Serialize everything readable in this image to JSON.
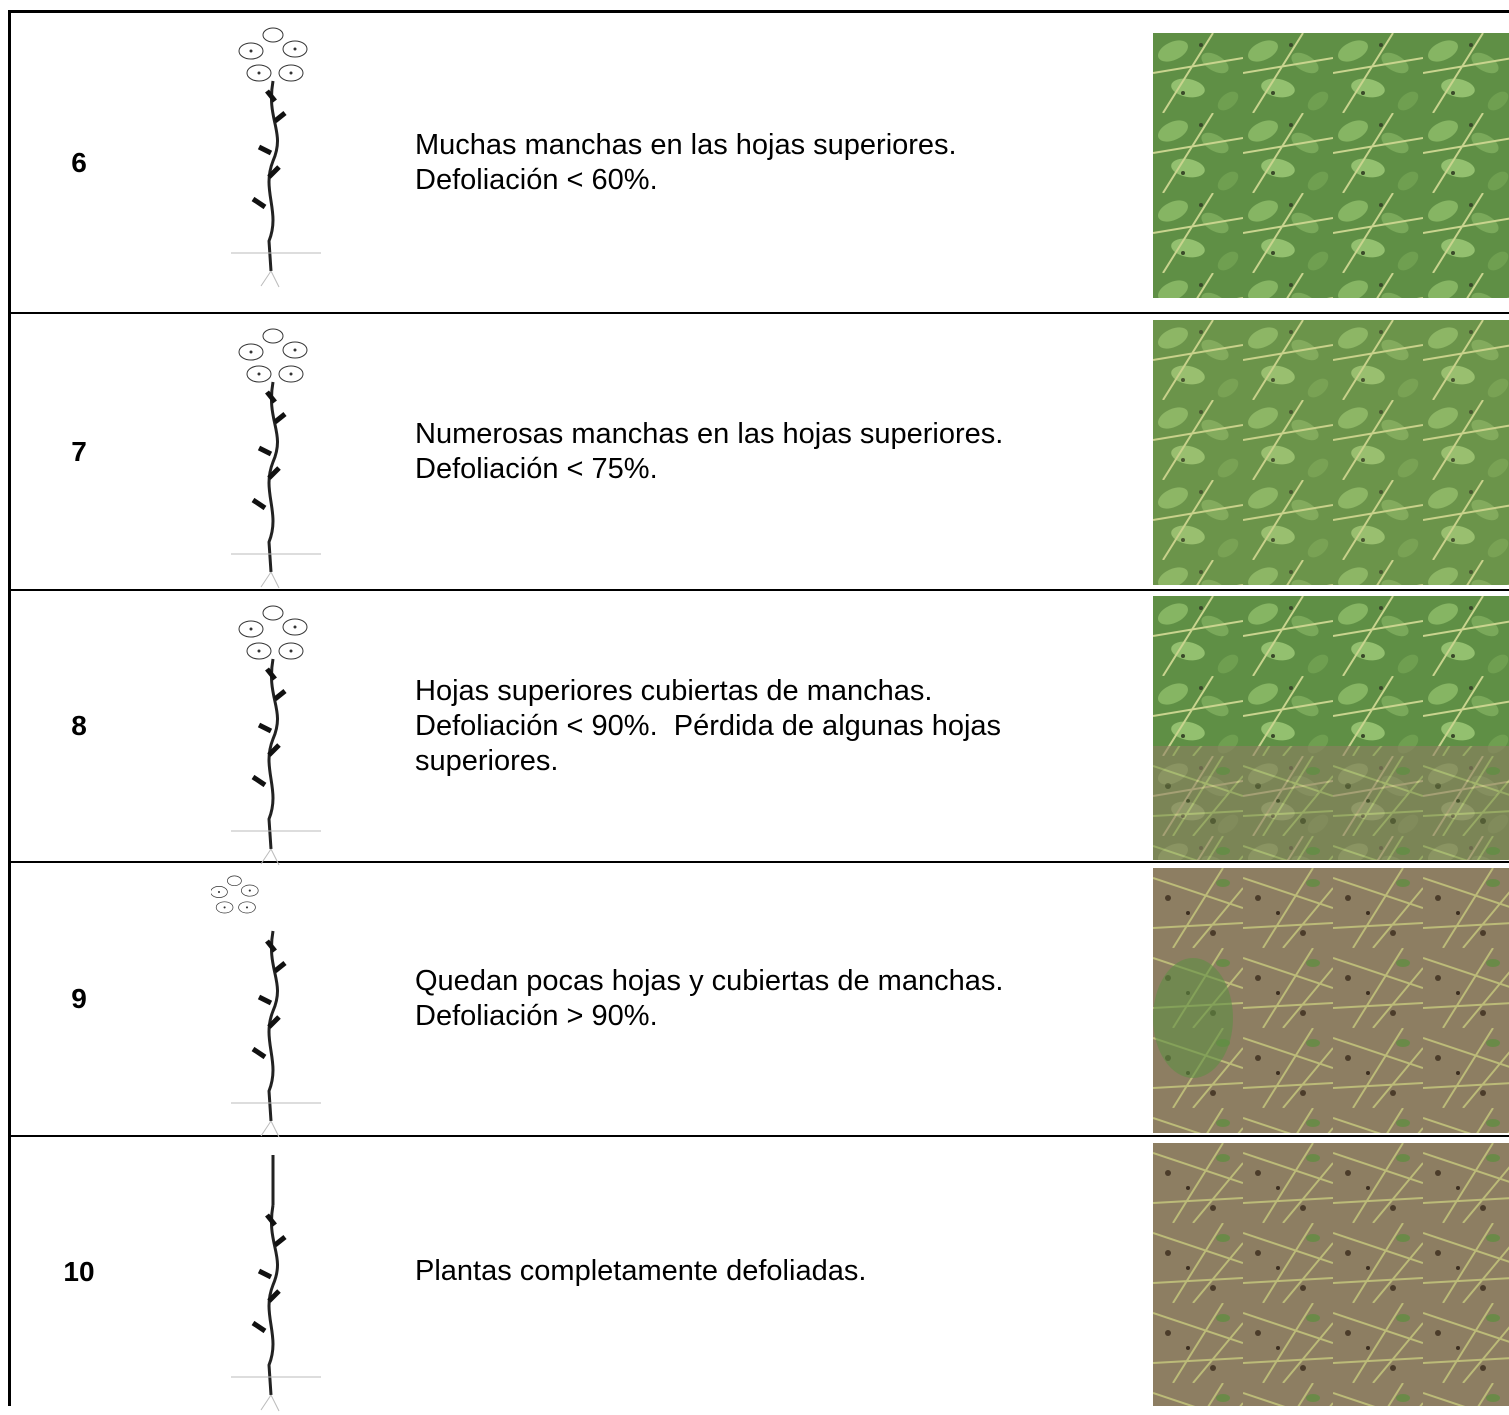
{
  "rows": [
    {
      "level": "6",
      "description": [
        "Muchas manchas en las hojas superiores.",
        "Defoliación < 60%."
      ]
    },
    {
      "level": "7",
      "description": [
        "Numerosas manchas en las hojas superiores.",
        "Defoliación < 75%."
      ]
    },
    {
      "level": "8",
      "description": [
        "Hojas superiores cubiertas de manchas.",
        "Defoliación < 90%.  Pérdida de algunas hojas",
        "superiores."
      ]
    },
    {
      "level": "9",
      "description": [
        "Quedan pocas hojas y cubiertas de manchas.",
        "Defoliación > 90%."
      ]
    },
    {
      "level": "10",
      "description": [
        "Plantas completamente defoliadas."
      ]
    }
  ]
}
